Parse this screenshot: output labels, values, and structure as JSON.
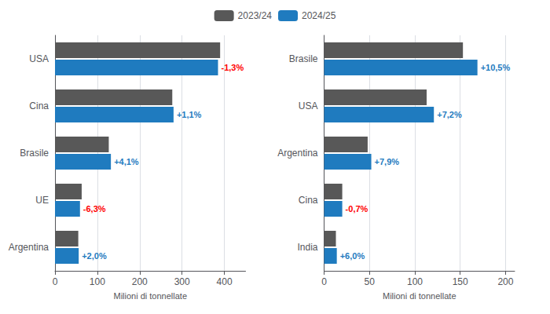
{
  "chart_data": [
    {
      "type": "bar",
      "orientation": "horizontal",
      "categories": [
        "USA",
        "Cina",
        "Brasile",
        "UE",
        "Argentina"
      ],
      "series": [
        {
          "name": "2023/24",
          "color": "#585858",
          "values": [
            390,
            277,
            127,
            63,
            55
          ]
        },
        {
          "name": "2024/25",
          "color": "#1f7bbf",
          "values": [
            385,
            280,
            132,
            59,
            56
          ]
        }
      ],
      "xlabel": "Milioni di tonnellate",
      "xlim": [
        0,
        450
      ],
      "xticks": [
        0,
        100,
        200,
        300,
        400
      ],
      "grid": true,
      "legend": "top",
      "annotations": [
        {
          "text": "-1,3%",
          "series": "2024/25",
          "category": "USA",
          "color": "red"
        },
        {
          "text": "+1,1%",
          "series": "2024/25",
          "category": "Cina",
          "color": "#1f7bbf"
        },
        {
          "text": "+4,1%",
          "series": "2024/25",
          "category": "Brasile",
          "color": "#1f7bbf"
        },
        {
          "text": "-6,3%",
          "series": "2024/25",
          "category": "UE",
          "color": "red"
        },
        {
          "text": "+2,0%",
          "series": "2024/25",
          "category": "Argentina",
          "color": "#1f7bbf"
        }
      ]
    },
    {
      "type": "bar",
      "orientation": "horizontal",
      "categories": [
        "Brasile",
        "USA",
        "Argentina",
        "Cina",
        "India"
      ],
      "series": [
        {
          "name": "2023/24",
          "color": "#585858",
          "values": [
            153,
            113,
            48,
            20,
            13
          ]
        },
        {
          "name": "2024/25",
          "color": "#1f7bbf",
          "values": [
            169,
            121,
            52,
            20,
            14
          ]
        }
      ],
      "xlabel": "Milioni di tonnellate",
      "xlim": [
        0,
        210
      ],
      "xticks": [
        0,
        50,
        100,
        150,
        200
      ],
      "grid": true,
      "legend": "top",
      "annotations": [
        {
          "text": "+10,5%",
          "series": "2024/25",
          "category": "Brasile",
          "color": "#1f7bbf"
        },
        {
          "text": "+7,2%",
          "series": "2024/25",
          "category": "USA",
          "color": "#1f7bbf"
        },
        {
          "text": "+7,9%",
          "series": "2024/25",
          "category": "Argentina",
          "color": "#1f7bbf"
        },
        {
          "text": "-0,7%",
          "series": "2024/25",
          "category": "Cina",
          "color": "red"
        },
        {
          "text": "+6,0%",
          "series": "2024/25",
          "category": "India",
          "color": "#1f7bbf"
        }
      ]
    }
  ]
}
